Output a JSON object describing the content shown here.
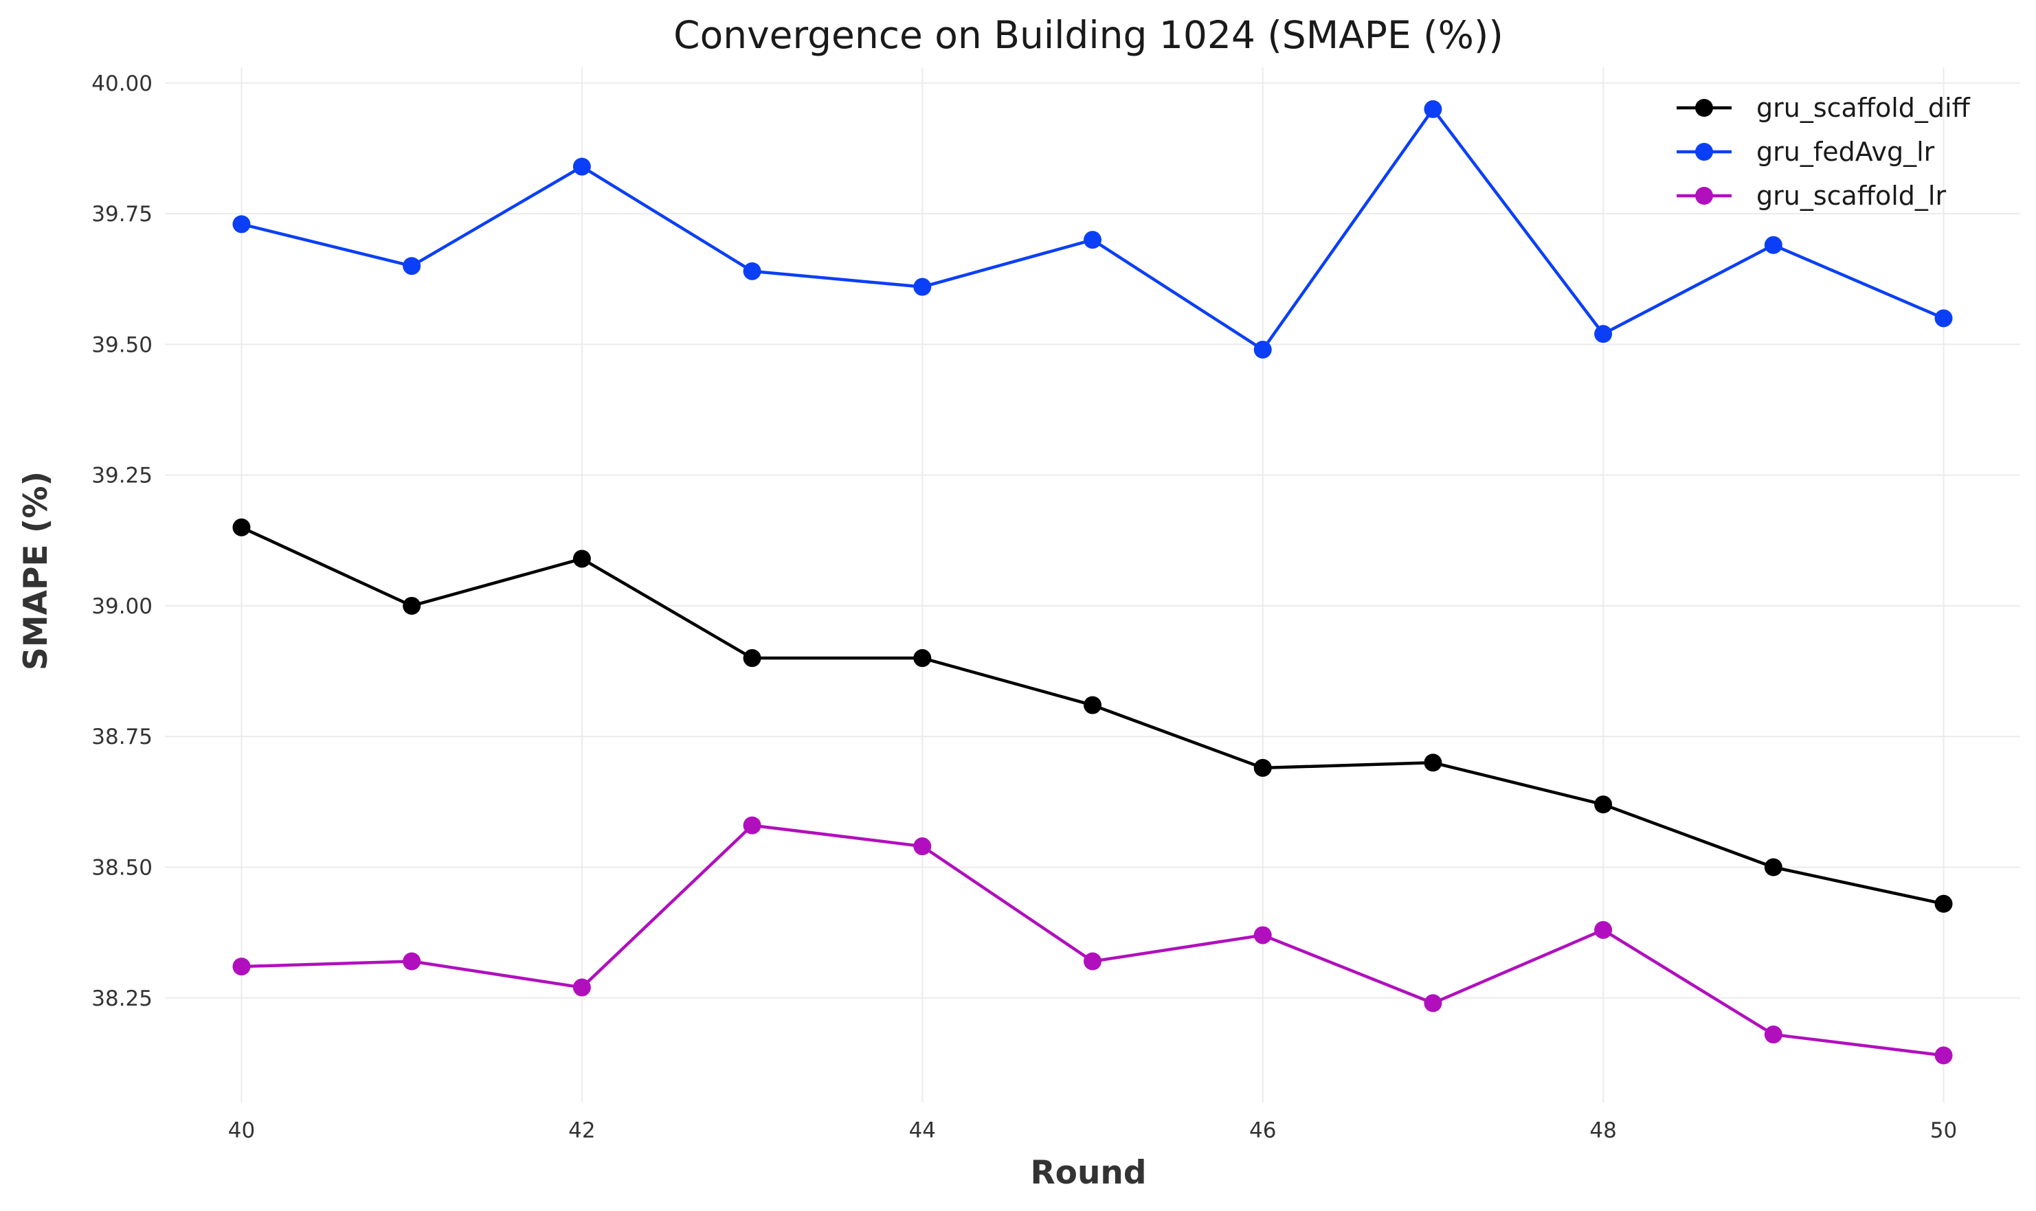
{
  "chart_data": {
    "type": "line",
    "title": "Convergence on Building 1024 (SMAPE (%))",
    "xlabel": "Round",
    "ylabel": "SMAPE (%)",
    "x": [
      40,
      41,
      42,
      43,
      44,
      45,
      46,
      47,
      48,
      49,
      50
    ],
    "xlim": [
      39.55,
      50.45
    ],
    "ylim": [
      38.05,
      40.03
    ],
    "x_ticks": [
      "40",
      "42",
      "44",
      "46",
      "48",
      "50"
    ],
    "y_ticks": [
      "38.25",
      "38.50",
      "38.75",
      "39.00",
      "39.25",
      "39.50",
      "39.75",
      "40.00"
    ],
    "grid": true,
    "legend_position": "top-right",
    "markers": true,
    "series": [
      {
        "name": "gru_scaffold_diff",
        "color": "#000000",
        "values": [
          39.15,
          39.0,
          39.09,
          38.9,
          38.9,
          38.81,
          38.69,
          38.7,
          38.62,
          38.5,
          38.43
        ]
      },
      {
        "name": "gru_fedAvg_lr",
        "color": "#0b3ff7",
        "values": [
          39.73,
          39.65,
          39.84,
          39.64,
          39.61,
          39.7,
          39.49,
          39.95,
          39.52,
          39.69,
          39.55
        ]
      },
      {
        "name": "gru_scaffold_lr",
        "color": "#b10fbd",
        "values": [
          38.31,
          38.32,
          38.27,
          38.58,
          38.54,
          38.32,
          38.37,
          38.24,
          38.38,
          38.18,
          38.14
        ]
      }
    ]
  }
}
